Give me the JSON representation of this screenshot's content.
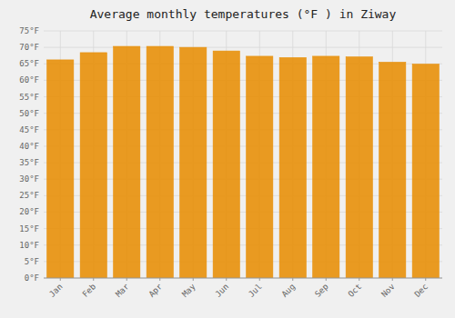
{
  "chart_data": {
    "type": "bar",
    "title": "Average monthly temperatures (°F ) in Ziway",
    "categories": [
      "Jan",
      "Feb",
      "Mar",
      "Apr",
      "May",
      "Jun",
      "Jul",
      "Aug",
      "Sep",
      "Oct",
      "Nov",
      "Dec"
    ],
    "values": [
      66.2,
      68.4,
      70.3,
      70.3,
      70.0,
      68.9,
      67.3,
      66.9,
      67.3,
      67.1,
      65.5,
      64.9
    ],
    "color": "#E8900A",
    "ylim": [
      0,
      75
    ],
    "yticks": [
      {
        "value": 0,
        "label": "0°F"
      },
      {
        "value": 5,
        "label": "5°F"
      },
      {
        "value": 10,
        "label": "10°F"
      },
      {
        "value": 15,
        "label": "15°F"
      },
      {
        "value": 20,
        "label": "20°F"
      },
      {
        "value": 25,
        "label": "25°F"
      },
      {
        "value": 30,
        "label": "30°F"
      },
      {
        "value": 35,
        "label": "35°F"
      },
      {
        "value": 40,
        "label": "40°F"
      },
      {
        "value": 45,
        "label": "45°F"
      },
      {
        "value": 50,
        "label": "50°F"
      },
      {
        "value": 55,
        "label": "55°F"
      },
      {
        "value": 60,
        "label": "60°F"
      },
      {
        "value": 65,
        "label": "65°F"
      },
      {
        "value": 70,
        "label": "70°F"
      },
      {
        "value": 75,
        "label": "75°F"
      }
    ],
    "grid": true
  }
}
